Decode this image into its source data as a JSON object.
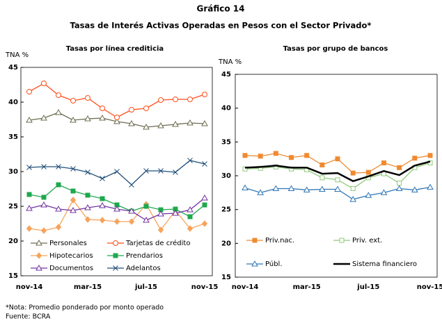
{
  "title": "Gráfico 14",
  "subtitle": "Tasas de Interés Activas Operadas en Pesos con el Sector Privado*",
  "notes": [
    "*Nota: Promedio ponderado por monto operado",
    "Fuente: BCRA"
  ],
  "chart_data": [
    {
      "type": "line",
      "title": "Tasas por línea crediticia",
      "ylabel": "TNA %",
      "categories": [
        "nov-14",
        null,
        null,
        null,
        "mar-15",
        null,
        null,
        null,
        "jul-15",
        null,
        null,
        null,
        "nov-15"
      ],
      "ylim": [
        15,
        45
      ],
      "yticks": [
        15,
        20,
        25,
        30,
        35,
        40,
        45
      ],
      "series": [
        {
          "name": "Personales",
          "color": "#6b6b4f",
          "marker": "triangle-open",
          "values": [
            37.4,
            37.7,
            38.5,
            37.4,
            37.6,
            37.7,
            37.2,
            36.9,
            36.4,
            36.6,
            36.8,
            37.0,
            36.9
          ]
        },
        {
          "name": "Tarjetas de crédito",
          "color": "#ff4e1a",
          "marker": "circle-open",
          "values": [
            41.5,
            42.7,
            41.0,
            40.2,
            40.6,
            39.1,
            37.8,
            38.9,
            39.1,
            40.3,
            40.4,
            40.4,
            41.1
          ]
        },
        {
          "name": "Hipotecarios",
          "color": "#f7a35c",
          "marker": "diamond",
          "values": [
            21.8,
            21.5,
            22.0,
            25.9,
            23.1,
            23.0,
            22.8,
            22.8,
            25.3,
            21.6,
            24.4,
            21.8,
            22.5
          ]
        },
        {
          "name": "Prendarios",
          "color": "#1fa84f",
          "marker": "square",
          "values": [
            26.7,
            26.3,
            28.1,
            27.2,
            26.6,
            26.1,
            25.2,
            24.3,
            25.0,
            24.5,
            24.6,
            23.5,
            25.2
          ]
        },
        {
          "name": "Documentos",
          "color": "#7030a0",
          "marker": "triangle-open",
          "values": [
            24.7,
            25.2,
            24.6,
            24.4,
            24.8,
            25.1,
            24.6,
            24.3,
            23.0,
            23.9,
            24.0,
            24.5,
            26.2
          ]
        },
        {
          "name": "Adelantos",
          "color": "#1f4e79",
          "marker": "x",
          "values": [
            30.6,
            30.7,
            30.7,
            30.4,
            29.9,
            29.0,
            30.0,
            28.1,
            30.1,
            30.1,
            29.9,
            31.6,
            31.1
          ]
        }
      ]
    },
    {
      "type": "line",
      "title": "Tasas por grupo de bancos",
      "ylabel": "TNA %",
      "categories": [
        "nov-14",
        null,
        null,
        null,
        "mar-15",
        null,
        null,
        null,
        "jul-15",
        null,
        null,
        null,
        "nov-15"
      ],
      "ylim": [
        15,
        45
      ],
      "yticks": [
        15,
        20,
        25,
        30,
        35,
        40,
        45
      ],
      "series": [
        {
          "name": "Priv.nac.",
          "color": "#f08a30",
          "marker": "square",
          "values": [
            33.0,
            32.9,
            33.3,
            32.7,
            33.0,
            31.6,
            32.5,
            30.4,
            30.5,
            31.9,
            31.2,
            32.6,
            33.0
          ]
        },
        {
          "name": "Priv. ext.",
          "color": "#8fc97a",
          "marker": "square-open",
          "values": [
            31.0,
            31.1,
            31.3,
            31.0,
            30.9,
            29.7,
            29.4,
            28.1,
            29.7,
            30.3,
            28.9,
            31.2,
            31.9
          ]
        },
        {
          "name": "Públ.",
          "color": "#2e75b6",
          "marker": "triangle-open",
          "values": [
            28.2,
            27.5,
            28.1,
            28.1,
            27.9,
            28.0,
            28.0,
            26.5,
            27.1,
            27.5,
            28.1,
            27.9,
            28.3
          ]
        },
        {
          "name": "Sistema financiero",
          "color": "#000000",
          "marker": "none",
          "values": [
            31.2,
            31.3,
            31.5,
            31.2,
            31.2,
            30.3,
            30.4,
            29.2,
            29.9,
            30.7,
            30.1,
            31.5,
            32.1
          ]
        }
      ]
    }
  ]
}
